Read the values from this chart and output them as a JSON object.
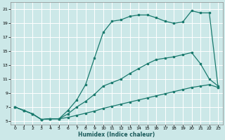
{
  "xlabel": "Humidex (Indice chaleur)",
  "background_color": "#cce8e8",
  "grid_color": "#ffffff",
  "line_color": "#1a7a6e",
  "xlim": [
    -0.5,
    23.5
  ],
  "ylim": [
    4.5,
    22.0
  ],
  "xticks": [
    0,
    1,
    2,
    3,
    4,
    5,
    6,
    7,
    8,
    9,
    10,
    11,
    12,
    13,
    14,
    15,
    16,
    17,
    18,
    19,
    20,
    21,
    22,
    23
  ],
  "yticks": [
    5,
    7,
    9,
    11,
    13,
    15,
    17,
    19,
    21
  ],
  "line1_x": [
    0,
    1,
    2,
    3,
    4,
    5,
    6,
    7,
    8,
    9,
    10,
    11,
    12,
    13,
    14,
    15,
    16,
    17,
    18,
    19,
    20,
    21,
    22,
    23
  ],
  "line1_y": [
    7.0,
    6.5,
    6.0,
    5.2,
    5.3,
    5.3,
    5.5,
    5.8,
    6.1,
    6.4,
    6.8,
    7.1,
    7.4,
    7.7,
    8.0,
    8.3,
    8.6,
    8.9,
    9.2,
    9.5,
    9.8,
    10.0,
    10.2,
    9.8
  ],
  "line2_x": [
    0,
    1,
    2,
    3,
    4,
    5,
    6,
    7,
    8,
    9,
    10,
    11,
    12,
    13,
    14,
    15,
    16,
    17,
    18,
    19,
    20,
    21,
    22,
    23
  ],
  "line2_y": [
    7.0,
    6.5,
    6.0,
    5.2,
    5.3,
    5.3,
    6.0,
    7.0,
    7.8,
    8.8,
    10.0,
    10.5,
    11.0,
    11.8,
    12.5,
    13.2,
    13.8,
    14.0,
    14.2,
    14.5,
    14.8,
    13.2,
    11.0,
    10.0
  ],
  "line3_x": [
    0,
    1,
    2,
    3,
    4,
    5,
    6,
    7,
    8,
    9,
    10,
    11,
    12,
    13,
    14,
    15,
    16,
    17,
    18,
    19,
    20,
    21,
    22,
    23
  ],
  "line3_y": [
    7.0,
    6.5,
    6.0,
    5.2,
    5.3,
    5.3,
    6.5,
    8.0,
    10.2,
    14.0,
    17.7,
    19.3,
    19.5,
    20.0,
    20.2,
    20.2,
    19.8,
    19.3,
    19.0,
    19.2,
    20.8,
    20.5,
    20.5,
    9.8
  ]
}
